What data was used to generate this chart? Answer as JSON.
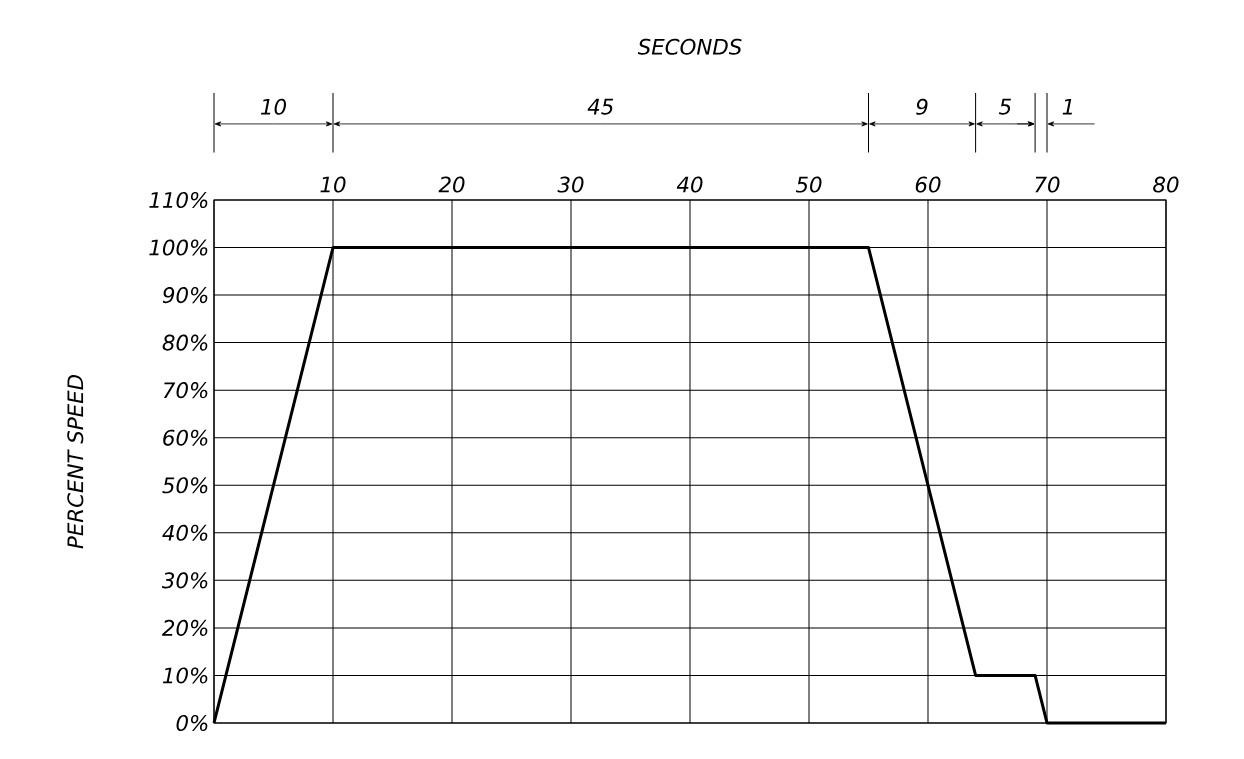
{
  "chart_data": {
    "type": "line",
    "ylabel": "PERCENT SPEED",
    "x": [
      0,
      10,
      55,
      64,
      69,
      70,
      80
    ],
    "series": [
      {
        "color": "#000000",
        "values": [
          0,
          100,
          100,
          10,
          10,
          0,
          0
        ]
      }
    ],
    "xlim": [
      0,
      80
    ],
    "xticks": [
      {
        "value": 0,
        "label": null
      },
      10,
      20,
      30,
      40,
      50,
      60,
      70,
      80
    ],
    "ylim": [
      0,
      110
    ],
    "yticks": [
      {
        "value": 0,
        "label": "0%"
      },
      {
        "value": 10,
        "label": "10%"
      },
      {
        "value": 20,
        "label": "20%"
      },
      {
        "value": 30,
        "label": "30%"
      },
      {
        "value": 40,
        "label": "40%"
      },
      {
        "value": 50,
        "label": "50%"
      },
      {
        "value": 60,
        "label": "60%"
      },
      {
        "value": 70,
        "label": "70%"
      },
      {
        "value": 80,
        "label": "80%"
      },
      {
        "value": 90,
        "label": "90%"
      },
      {
        "value": 100,
        "label": "100%"
      },
      {
        "value": 110,
        "label": "110%"
      }
    ],
    "annotations": [
      "SECONDS",
      "10",
      "45",
      "9",
      "5",
      "1"
    ],
    "grid": true,
    "line_style": "solid"
  }
}
